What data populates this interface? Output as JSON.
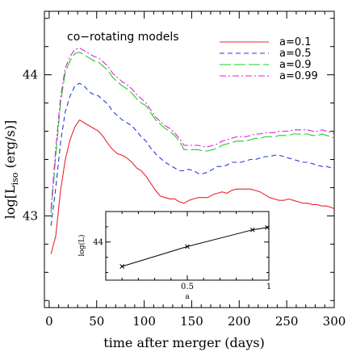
{
  "chart_data": [
    {
      "type": "line",
      "annotation": "co−rotating models",
      "xlabel": "time after merger (days)",
      "ylabel_prefix": "log[L",
      "ylabel_sub": "iso",
      "ylabel_suffix": " (erg/s)]",
      "xlim": [
        -5,
        300
      ],
      "ylim": [
        42.35,
        44.45
      ],
      "x_ticks": [
        0,
        50,
        100,
        150,
        200,
        250,
        300
      ],
      "y_ticks": [
        43,
        44
      ],
      "legend_position": "top-right",
      "series": [
        {
          "name": "a=0.1",
          "color": "#e8262b",
          "dash": "",
          "x": [
            2,
            7,
            12,
            17,
            22,
            27,
            32,
            37,
            42,
            47,
            52,
            57,
            62,
            67,
            72,
            77,
            82,
            87,
            92,
            97,
            102,
            107,
            112,
            117,
            122,
            127,
            132,
            137,
            142,
            147,
            152,
            157,
            162,
            167,
            172,
            177,
            182,
            187,
            192,
            197,
            202,
            207,
            212,
            217,
            222,
            227,
            232,
            237,
            242,
            247,
            252,
            257,
            262,
            267,
            272,
            277,
            282,
            287,
            292,
            297,
            300
          ],
          "y": [
            42.73,
            42.86,
            43.18,
            43.4,
            43.54,
            43.63,
            43.68,
            43.66,
            43.64,
            43.62,
            43.6,
            43.56,
            43.51,
            43.47,
            43.44,
            43.43,
            43.41,
            43.38,
            43.34,
            43.32,
            43.28,
            43.23,
            43.18,
            43.14,
            43.13,
            43.12,
            43.12,
            43.1,
            43.09,
            43.11,
            43.12,
            43.13,
            43.13,
            43.13,
            43.15,
            43.16,
            43.17,
            43.16,
            43.18,
            43.19,
            43.19,
            43.19,
            43.19,
            43.18,
            43.17,
            43.15,
            43.13,
            43.12,
            43.11,
            43.11,
            43.12,
            43.11,
            43.1,
            43.09,
            43.09,
            43.08,
            43.08,
            43.07,
            43.07,
            43.06,
            43.05
          ]
        },
        {
          "name": "a=0.5",
          "color": "#2a3bd6",
          "dash": "6,4",
          "x": [
            2,
            7,
            12,
            17,
            22,
            27,
            32,
            37,
            42,
            47,
            52,
            57,
            62,
            67,
            72,
            77,
            82,
            87,
            92,
            97,
            102,
            107,
            112,
            117,
            122,
            127,
            132,
            137,
            142,
            147,
            152,
            157,
            162,
            167,
            172,
            177,
            182,
            187,
            192,
            197,
            202,
            207,
            212,
            217,
            222,
            227,
            232,
            237,
            242,
            247,
            252,
            257,
            262,
            267,
            272,
            277,
            282,
            287,
            292,
            297,
            300
          ],
          "y": [
            42.93,
            43.2,
            43.52,
            43.74,
            43.85,
            43.92,
            43.94,
            43.92,
            43.88,
            43.86,
            43.85,
            43.82,
            43.79,
            43.74,
            43.71,
            43.68,
            43.66,
            43.64,
            43.6,
            43.56,
            43.53,
            43.48,
            43.44,
            43.41,
            43.38,
            43.36,
            43.34,
            43.32,
            43.32,
            43.33,
            43.32,
            43.3,
            43.3,
            43.31,
            43.33,
            43.35,
            43.35,
            43.36,
            43.38,
            43.38,
            43.38,
            43.39,
            43.4,
            43.4,
            43.41,
            43.42,
            43.42,
            43.43,
            43.43,
            43.42,
            43.41,
            43.4,
            43.39,
            43.38,
            43.38,
            43.37,
            43.36,
            43.35,
            43.35,
            43.34,
            43.33
          ]
        },
        {
          "name": "a=0.9",
          "color": "#22cc22",
          "dash": "14,4",
          "x": [
            2,
            7,
            12,
            17,
            22,
            27,
            32,
            37,
            42,
            47,
            52,
            57,
            62,
            67,
            72,
            77,
            82,
            87,
            92,
            97,
            102,
            107,
            112,
            117,
            122,
            127,
            132,
            137,
            142,
            147,
            152,
            157,
            162,
            167,
            172,
            177,
            182,
            187,
            192,
            197,
            202,
            207,
            212,
            217,
            222,
            227,
            232,
            237,
            242,
            247,
            252,
            257,
            262,
            267,
            272,
            277,
            282,
            287,
            292,
            297,
            300
          ],
          "y": [
            43.02,
            43.43,
            43.8,
            44.02,
            44.1,
            44.15,
            44.16,
            44.14,
            44.12,
            44.1,
            44.09,
            44.06,
            44.03,
            43.98,
            43.95,
            43.92,
            43.9,
            43.87,
            43.83,
            43.8,
            43.78,
            43.73,
            43.68,
            43.65,
            43.62,
            43.6,
            43.57,
            43.53,
            43.47,
            43.47,
            43.47,
            43.47,
            43.46,
            43.46,
            43.47,
            43.48,
            43.5,
            43.51,
            43.52,
            43.53,
            43.53,
            43.53,
            43.54,
            43.55,
            43.55,
            43.56,
            43.56,
            43.56,
            43.57,
            43.57,
            43.57,
            43.58,
            43.58,
            43.58,
            43.58,
            43.57,
            43.57,
            43.58,
            43.57,
            43.56,
            43.55
          ]
        },
        {
          "name": "a=0.99",
          "color": "#dd22dd",
          "dash": "8,3,2,3",
          "x": [
            2,
            7,
            12,
            17,
            22,
            27,
            32,
            37,
            42,
            47,
            52,
            57,
            62,
            67,
            72,
            77,
            82,
            87,
            92,
            97,
            102,
            107,
            112,
            117,
            122,
            127,
            132,
            137,
            142,
            147,
            152,
            157,
            162,
            167,
            172,
            177,
            182,
            187,
            192,
            197,
            202,
            207,
            212,
            217,
            222,
            227,
            232,
            237,
            242,
            247,
            252,
            257,
            262,
            267,
            272,
            277,
            282,
            287,
            292,
            297,
            300
          ],
          "y": [
            43.05,
            43.48,
            43.84,
            44.05,
            44.13,
            44.18,
            44.19,
            44.17,
            44.15,
            44.13,
            44.12,
            44.09,
            44.06,
            44.01,
            43.98,
            43.95,
            43.93,
            43.9,
            43.86,
            43.83,
            43.8,
            43.75,
            43.7,
            43.67,
            43.64,
            43.62,
            43.59,
            43.55,
            43.5,
            43.5,
            43.5,
            43.5,
            43.49,
            43.49,
            43.5,
            43.51,
            43.53,
            43.54,
            43.55,
            43.56,
            43.56,
            43.56,
            43.57,
            43.58,
            43.58,
            43.59,
            43.59,
            43.59,
            43.6,
            43.6,
            43.6,
            43.61,
            43.61,
            43.61,
            43.61,
            43.6,
            43.6,
            43.61,
            43.6,
            43.59,
            43.58
          ]
        }
      ]
    },
    {
      "type": "line",
      "xlabel": "a",
      "ylabel": "log(L)",
      "xlim": [
        0,
        1
      ],
      "ylim": [
        43.5,
        44.4
      ],
      "x_ticks": [
        0.5,
        1
      ],
      "x_tick_labels": [
        "0.5",
        "1"
      ],
      "y_ticks": [
        44
      ],
      "series": [
        {
          "color": "#000000",
          "marker": "x",
          "x": [
            0.1,
            0.5,
            0.9,
            0.99
          ],
          "y": [
            43.68,
            43.94,
            44.16,
            44.19
          ]
        }
      ]
    }
  ]
}
